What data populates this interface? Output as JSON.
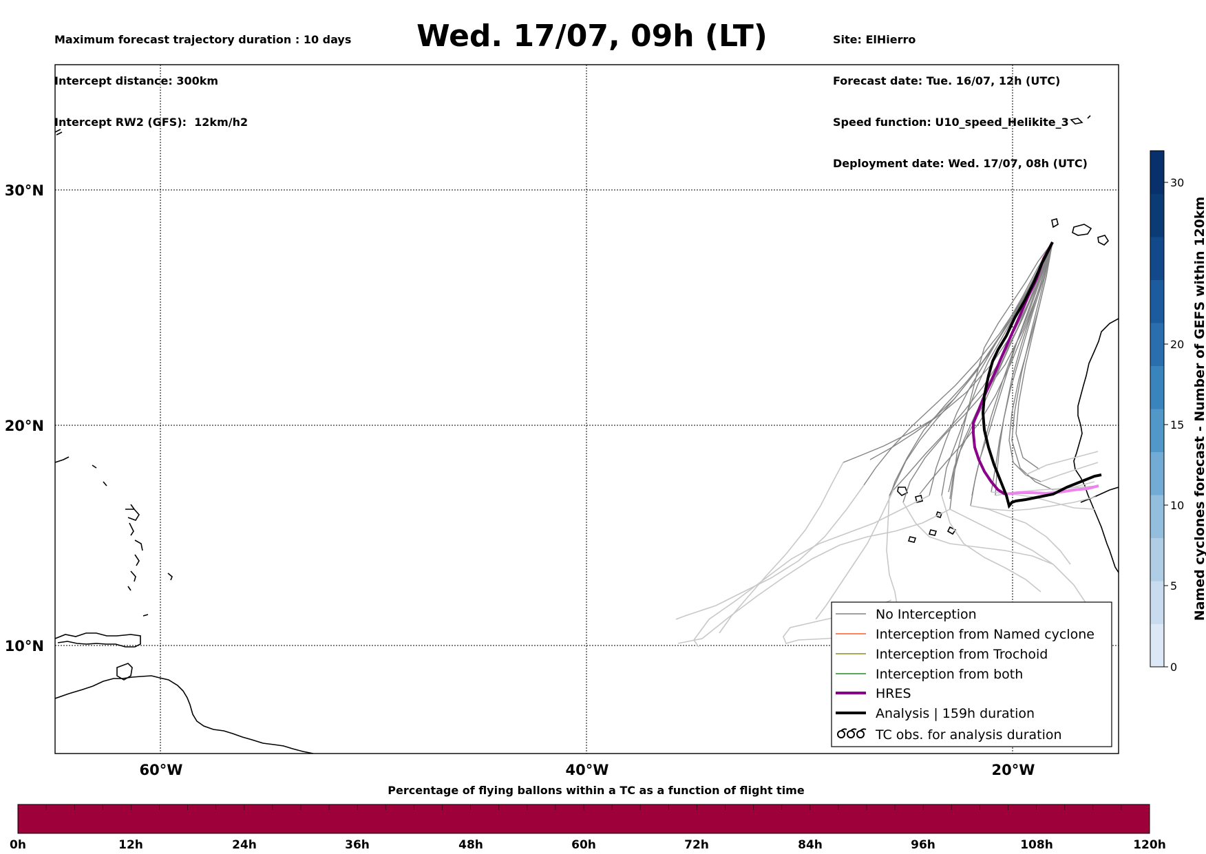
{
  "header": {
    "left": [
      "Maximum forecast trajectory duration : 10 days",
      "Intercept distance: 300km",
      "Intercept RW2 (GFS):  12km/h2"
    ],
    "title": "Wed. 17/07, 09h (LT)",
    "right": [
      "Site: ElHierro",
      "Forecast date: Tue. 16/07, 12h (UTC)",
      "Speed function: U10_speed_Helikite_3",
      "Deployment date: Wed. 17/07, 08h (UTC)"
    ]
  },
  "map": {
    "lat_labels": [
      "30°N",
      "20°N",
      "10°N"
    ],
    "lon_labels": [
      "60°W",
      "40°W",
      "20°W"
    ],
    "grid": true
  },
  "legend": {
    "items": [
      {
        "label": "No Interception",
        "color": "#808080",
        "style": "thin"
      },
      {
        "label": "Interception from Named cyclone",
        "color": "#ff5a1e",
        "style": "thin"
      },
      {
        "label": "Interception from Trochoid",
        "color": "#8c8c1e",
        "style": "thin"
      },
      {
        "label": "Interception from both",
        "color": "#1e8c1e",
        "style": "thin"
      },
      {
        "label": "HRES",
        "color": "#8b008b",
        "style": "thick"
      },
      {
        "label": "Analysis | 159h duration",
        "color": "#000000",
        "style": "thick"
      },
      {
        "label": "TC obs. for analysis duration",
        "color": "#000000",
        "style": "symbol",
        "icon": "tc-symbol-icon"
      }
    ]
  },
  "colorbar_right": {
    "label": "Named cyclones forecast - Number of GEFS within 120km",
    "ticks": [
      "0",
      "5",
      "10",
      "15",
      "20",
      "30"
    ],
    "colors": [
      "#dce8f5",
      "#c9dcef",
      "#b0cde6",
      "#93bede",
      "#72acd5",
      "#5198c8",
      "#3a84bd",
      "#2a6eae",
      "#1c5c9e",
      "#12498a",
      "#0b3b75",
      "#08306b"
    ]
  },
  "bottom_bar": {
    "title": "Percentage of flying ballons within a TC as a function of flight time",
    "ticks": [
      "0h",
      "12h",
      "24h",
      "36h",
      "48h",
      "60h",
      "72h",
      "84h",
      "96h",
      "108h",
      "120h"
    ],
    "color": "#9e003a"
  }
}
